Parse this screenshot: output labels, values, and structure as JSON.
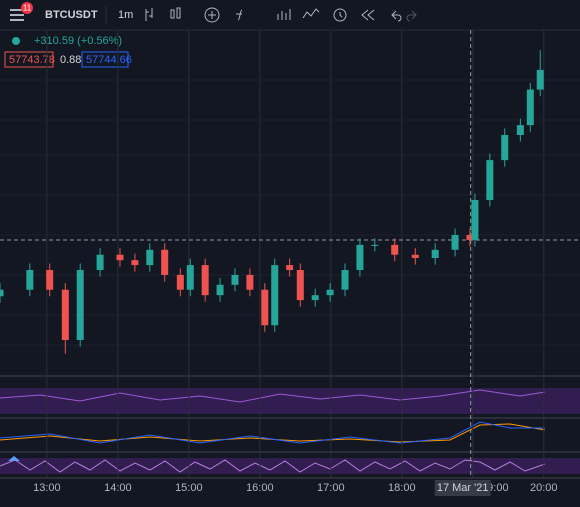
{
  "toolbar": {
    "badge": "11",
    "symbol": "BTCUSDT",
    "interval": "1m"
  },
  "legend": {
    "change": "+310.59 (+0.56%)",
    "bid": "57743.78",
    "spread": "0.88",
    "ask": "57744.66"
  },
  "chart_data": {
    "type": "candlestick",
    "x": [
      12.34,
      12.76,
      13.04,
      13.26,
      13.47,
      13.75,
      14.03,
      14.24,
      14.45,
      14.66,
      14.88,
      15.02,
      15.23,
      15.44,
      15.65,
      15.86,
      16.07,
      16.21,
      16.42,
      16.57,
      16.78,
      16.99,
      17.2,
      17.41,
      17.62,
      17.9,
      18.19,
      18.47,
      18.75,
      18.96,
      19.03,
      19.24,
      19.45,
      19.67,
      19.81,
      19.95
    ],
    "open": [
      57330,
      57342,
      57378,
      57342,
      57250,
      57378,
      57406,
      57396,
      57387,
      57415,
      57369,
      57342,
      57387,
      57332,
      57351,
      57369,
      57342,
      57277,
      57387,
      57378,
      57323,
      57332,
      57342,
      57378,
      57424,
      57424,
      57406,
      57400,
      57415,
      57442,
      57433,
      57506,
      57579,
      57625,
      57643,
      57708
    ],
    "high": [
      57354,
      57390,
      57390,
      57354,
      57390,
      57418,
      57418,
      57408,
      57427,
      57427,
      57381,
      57399,
      57399,
      57363,
      57381,
      57381,
      57354,
      57399,
      57399,
      57390,
      57344,
      57354,
      57390,
      57436,
      57436,
      57436,
      57418,
      57427,
      57454,
      57454,
      57518,
      57591,
      57637,
      57655,
      57720,
      57780
    ],
    "low": [
      57318,
      57330,
      57330,
      57225,
      57238,
      57366,
      57384,
      57375,
      57375,
      57357,
      57330,
      57330,
      57320,
      57320,
      57339,
      57330,
      57265,
      57265,
      57366,
      57311,
      57311,
      57320,
      57330,
      57366,
      57412,
      57394,
      57388,
      57388,
      57403,
      57421,
      57421,
      57494,
      57567,
      57613,
      57631,
      57696
    ],
    "close": [
      57342,
      57378,
      57342,
      57250,
      57378,
      57406,
      57396,
      57387,
      57415,
      57369,
      57342,
      57387,
      57332,
      57351,
      57369,
      57342,
      57277,
      57387,
      57378,
      57323,
      57332,
      57342,
      57378,
      57424,
      57424,
      57406,
      57400,
      57415,
      57442,
      57433,
      57506,
      57579,
      57625,
      57643,
      57708,
      57744
    ],
    "up_color": "#26a69a",
    "down_color": "#ef5350",
    "xlim": [
      12.34,
      20.51
    ],
    "ylim": [
      57186,
      57817
    ],
    "xticks": [
      {
        "value": 13,
        "label": "13:00"
      },
      {
        "value": 14,
        "label": "14:00"
      },
      {
        "value": 15,
        "label": "15:00"
      },
      {
        "value": 16,
        "label": "16:00"
      },
      {
        "value": 17,
        "label": "17:00"
      },
      {
        "value": 18,
        "label": "18:00"
      },
      {
        "value": 19,
        "label": "19:00"
      },
      {
        "value": 20,
        "label": "20:00"
      }
    ],
    "reference_line": 57433,
    "crosshair": {
      "value": 18.97,
      "label": "17 Mar '21"
    },
    "grid": true
  }
}
